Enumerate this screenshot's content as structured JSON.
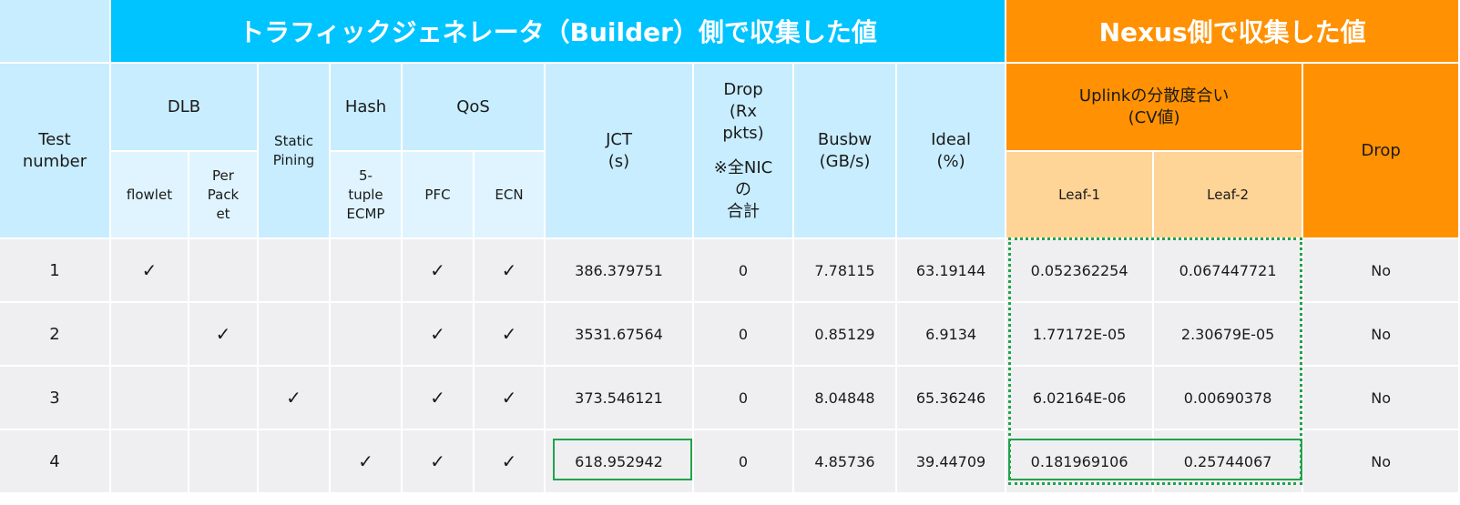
{
  "headers": {
    "builder_group": "トラフィックジェネレータ（Builder）側で収集した値",
    "nexus_group": "Nexus側で収集した値",
    "test_number": [
      "Test",
      "number"
    ],
    "dlb": "DLB",
    "flowlet": "flowlet",
    "per_packet": [
      "Per",
      "Pack",
      "et"
    ],
    "static_pining": [
      "Static",
      "Pining"
    ],
    "hash": "Hash",
    "tuple_ecmp": [
      "5-",
      "tuple",
      "ECMP"
    ],
    "qos": "QoS",
    "pfc": "PFC",
    "ecn": "ECN",
    "jct": [
      "JCT",
      "(s)"
    ],
    "drop_rx": [
      "Drop",
      "(Rx",
      "pkts)"
    ],
    "drop_note": [
      "※全NIC",
      "の",
      "合計"
    ],
    "busbw": [
      "Busbw",
      "(GB/s)"
    ],
    "ideal": [
      "Ideal",
      "(%)"
    ],
    "uplink": [
      "Uplinkの分散度合い",
      "(CV値)"
    ],
    "leaf1": "Leaf-1",
    "leaf2": "Leaf-2",
    "drop": "Drop"
  },
  "rows": [
    {
      "test": "1",
      "flowlet": "✓",
      "per_packet": "",
      "static": "",
      "tuple": "",
      "pfc": "✓",
      "ecn": "✓",
      "jct": "386.379751",
      "drop_rx": "0",
      "busbw": "7.78115",
      "ideal": "63.19144",
      "leaf1": "0.052362254",
      "leaf2": "0.067447721",
      "drop": "No"
    },
    {
      "test": "2",
      "flowlet": "",
      "per_packet": "✓",
      "static": "",
      "tuple": "",
      "pfc": "✓",
      "ecn": "✓",
      "jct": "3531.67564",
      "drop_rx": "0",
      "busbw": "0.85129",
      "ideal": "6.9134",
      "leaf1": "1.77172E-05",
      "leaf2": "2.30679E-05",
      "drop": "No"
    },
    {
      "test": "3",
      "flowlet": "",
      "per_packet": "",
      "static": "✓",
      "tuple": "",
      "pfc": "✓",
      "ecn": "✓",
      "jct": "373.546121",
      "drop_rx": "0",
      "busbw": "8.04848",
      "ideal": "65.36246",
      "leaf1": "6.02164E-06",
      "leaf2": "0.00690378",
      "drop": "No"
    },
    {
      "test": "4",
      "flowlet": "",
      "per_packet": "",
      "static": "",
      "tuple": "✓",
      "pfc": "✓",
      "ecn": "✓",
      "jct": "618.952942",
      "drop_rx": "0",
      "busbw": "4.85736",
      "ideal": "39.44709",
      "leaf1": "0.181969106",
      "leaf2": "0.25744067",
      "drop": "No"
    }
  ],
  "colors": {
    "builder_header": "#00c4ff",
    "nexus_header": "#ff9102",
    "highlight_border": "#22a34a"
  }
}
